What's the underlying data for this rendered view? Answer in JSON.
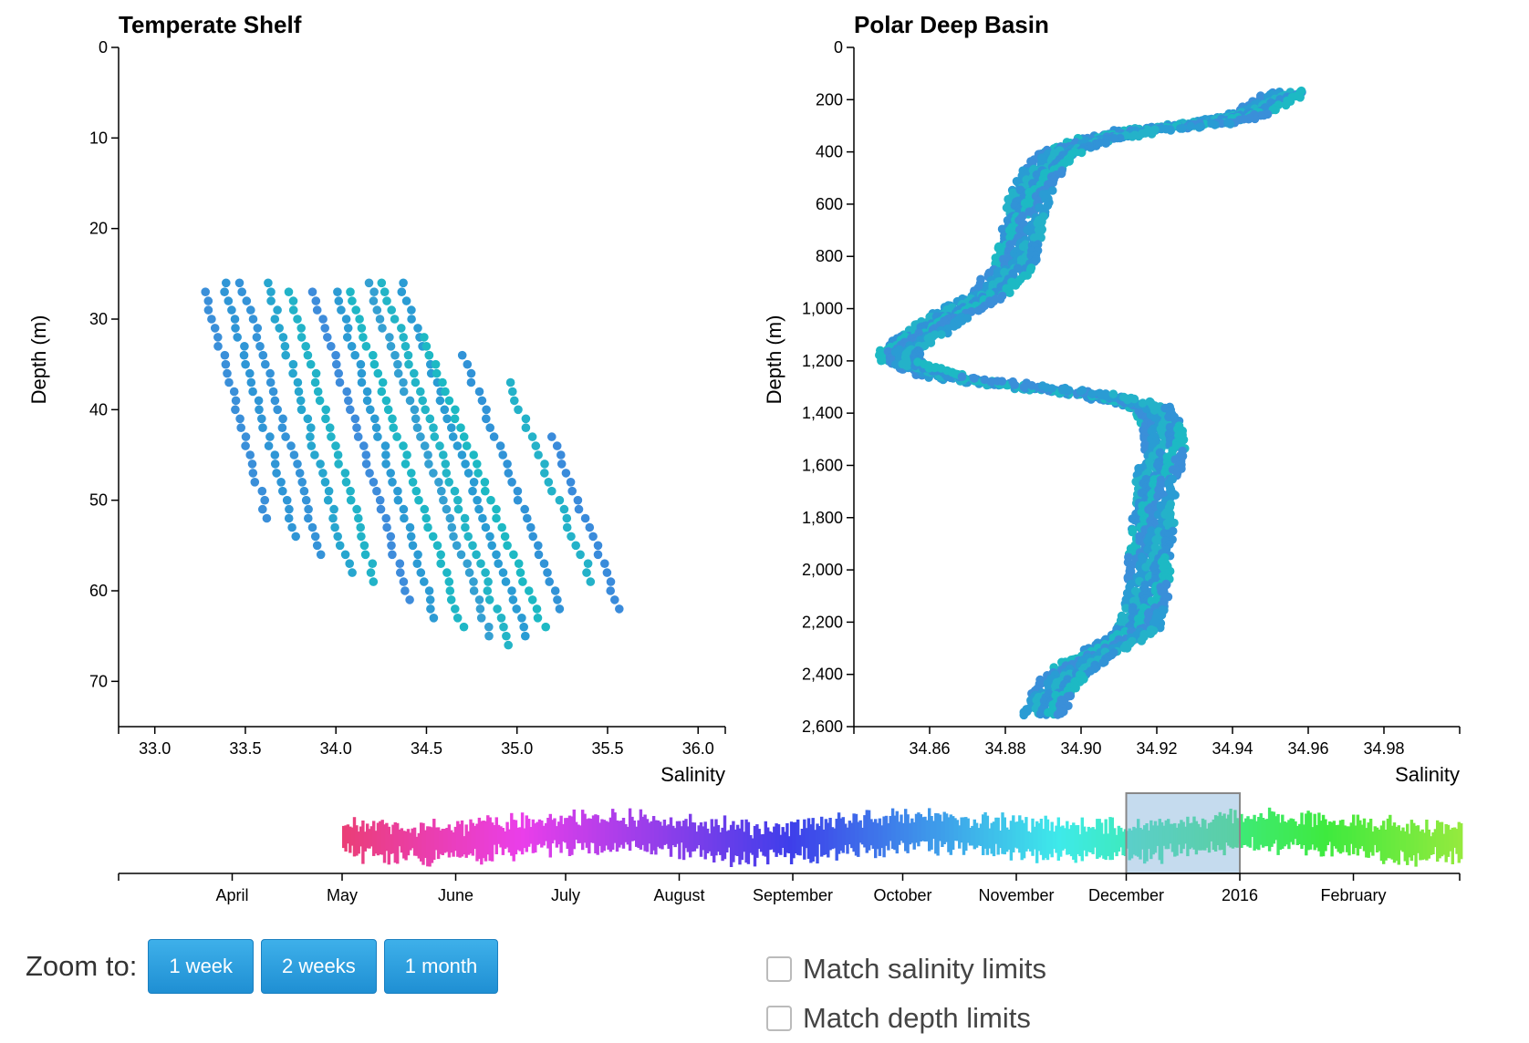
{
  "chart_data": [
    {
      "type": "scatter",
      "title": "Temperate Shelf",
      "xlabel": "Salinity",
      "ylabel": "Depth (m)",
      "xlim": [
        32.8,
        36.15
      ],
      "ylim": [
        75,
        0
      ],
      "xticks": [
        33.0,
        33.5,
        34.0,
        34.5,
        35.0,
        35.5,
        36.0
      ],
      "xtick_labels": [
        "33.0",
        "33.5",
        "34.0",
        "34.5",
        "35.0",
        "35.5",
        "36.0"
      ],
      "yticks": [
        0,
        10,
        20,
        30,
        40,
        50,
        60,
        70
      ],
      "ytick_labels": [
        "0",
        "10",
        "20",
        "30",
        "40",
        "50",
        "60",
        "70"
      ],
      "series": [
        {
          "profiles": [
            {
              "top": [
                33.28,
                27
              ],
              "bottom": [
                33.62,
                52
              ],
              "color": "#3a8fd9"
            },
            {
              "top": [
                33.38,
                26
              ],
              "bottom": [
                33.78,
                54
              ],
              "color": "#2f96d6"
            },
            {
              "top": [
                33.48,
                26
              ],
              "bottom": [
                33.92,
                56
              ],
              "color": "#3593d8"
            },
            {
              "top": [
                33.62,
                26
              ],
              "bottom": [
                34.08,
                58
              ],
              "color": "#27a6cf"
            },
            {
              "top": [
                33.75,
                27
              ],
              "bottom": [
                34.22,
                59
              ],
              "color": "#22b3c8"
            },
            {
              "top": [
                33.88,
                27
              ],
              "bottom": [
                34.4,
                61
              ],
              "color": "#3e8cdb"
            },
            {
              "top": [
                34.0,
                27
              ],
              "bottom": [
                34.55,
                63
              ],
              "color": "#2c9bd4"
            },
            {
              "top": [
                34.08,
                27
              ],
              "bottom": [
                34.7,
                64
              ],
              "color": "#1fb7c6"
            },
            {
              "top": [
                34.18,
                26
              ],
              "bottom": [
                34.85,
                65
              ],
              "color": "#35a0d2"
            },
            {
              "top": [
                34.26,
                26
              ],
              "bottom": [
                34.95,
                66
              ],
              "color": "#23b5c7"
            },
            {
              "top": [
                34.36,
                26
              ],
              "bottom": [
                35.05,
                65
              ],
              "color": "#2a9cd4"
            },
            {
              "top": [
                34.48,
                32
              ],
              "bottom": [
                35.15,
                64
              ],
              "color": "#1db9c4"
            },
            {
              "top": [
                34.7,
                34
              ],
              "bottom": [
                35.25,
                62
              ],
              "color": "#3193d7"
            },
            {
              "top": [
                34.95,
                37
              ],
              "bottom": [
                35.42,
                59
              ],
              "color": "#24b2c9"
            },
            {
              "top": [
                35.2,
                43
              ],
              "bottom": [
                35.57,
                62
              ],
              "color": "#3a8bdb"
            }
          ]
        }
      ]
    },
    {
      "type": "scatter",
      "title": "Polar Deep Basin",
      "xlabel": "Salinity",
      "ylabel": "Depth (m)",
      "xlim": [
        34.84,
        35.0
      ],
      "ylim": [
        2600,
        0
      ],
      "xticks": [
        34.86,
        34.88,
        34.9,
        34.92,
        34.94,
        34.96,
        34.98
      ],
      "xtick_labels": [
        "34.86",
        "34.88",
        "34.90",
        "34.92",
        "34.94",
        "34.96",
        "34.98"
      ],
      "yticks": [
        0,
        200,
        400,
        600,
        800,
        1000,
        1200,
        1400,
        1600,
        1800,
        2000,
        2200,
        2400,
        2600
      ],
      "ytick_labels": [
        "0",
        "200",
        "400",
        "600",
        "800",
        "1,000",
        "1,200",
        "1,400",
        "1,600",
        "1,800",
        "2,000",
        "2,200",
        "2,400",
        "2,600"
      ],
      "series": [
        {
          "profile": [
            [
              34.955,
              170
            ],
            [
              34.945,
              250
            ],
            [
              34.935,
              290
            ],
            [
              34.915,
              320
            ],
            [
              34.905,
              350
            ],
            [
              34.895,
              400
            ],
            [
              34.89,
              470
            ],
            [
              34.887,
              550
            ],
            [
              34.885,
              650
            ],
            [
              34.884,
              750
            ],
            [
              34.882,
              850
            ],
            [
              34.875,
              950
            ],
            [
              34.865,
              1030
            ],
            [
              34.858,
              1100
            ],
            [
              34.852,
              1160
            ],
            [
              34.853,
              1210
            ],
            [
              34.865,
              1260
            ],
            [
              34.885,
              1300
            ],
            [
              34.905,
              1330
            ],
            [
              34.918,
              1380
            ],
            [
              34.922,
              1450
            ],
            [
              34.922,
              1550
            ],
            [
              34.92,
              1650
            ],
            [
              34.919,
              1750
            ],
            [
              34.919,
              1850
            ],
            [
              34.918,
              1950
            ],
            [
              34.918,
              2050
            ],
            [
              34.917,
              2150
            ],
            [
              34.915,
              2230
            ],
            [
              34.905,
              2320
            ],
            [
              34.896,
              2400
            ],
            [
              34.892,
              2480
            ],
            [
              34.89,
              2560
            ]
          ],
          "colors": [
            "#3a8fd9",
            "#2a9cd4",
            "#24b2c9",
            "#3193d7",
            "#1db9c4"
          ]
        }
      ]
    },
    {
      "type": "area",
      "title": "",
      "xlabel": "",
      "ylabel": "",
      "x_ticks": [
        "April",
        "May",
        "June",
        "July",
        "August",
        "September",
        "October",
        "November",
        "December",
        "2016",
        "February"
      ],
      "x_range": [
        "2015-03-01",
        "2016-03-01"
      ],
      "data_start": "2015-05-01",
      "data_end": "2016-03-01",
      "selection": [
        "2015-12-01",
        "2016-01-01"
      ],
      "color_scale": "rainbow by date (pink → orange → yellow → green → cyan → blue → purple)"
    }
  ],
  "controls": {
    "zoom_label": "Zoom to:",
    "buttons": [
      "1 week",
      "2 weeks",
      "1 month"
    ],
    "checkboxes": [
      "Match salinity limits",
      "Match depth limits"
    ]
  },
  "colors": {
    "button": "#2c9fdf",
    "selection": "#7fb0d9"
  }
}
